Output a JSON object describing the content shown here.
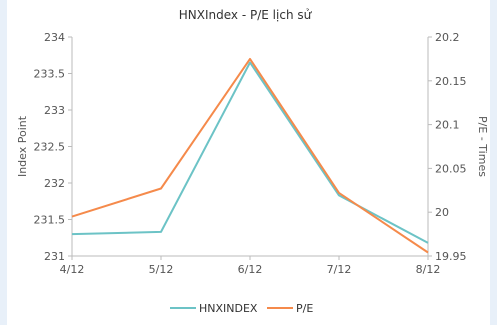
{
  "chart_data": {
    "type": "line",
    "title": "HNXIndex - P/E lịch sử",
    "categories": [
      "4/12",
      "5/12",
      "6/12",
      "7/12",
      "8/12"
    ],
    "ylabel_left": "Index Point",
    "ylabel_right": "P/E - Times",
    "ylim_left": [
      231,
      234
    ],
    "ylim_right": [
      19.95,
      20.2
    ],
    "yticks_left": [
      "231",
      "231.5",
      "232",
      "232.5",
      "233",
      "233.5",
      "234"
    ],
    "yticks_right": [
      "19.95",
      "20",
      "20.05",
      "20.1",
      "20.15",
      "20.2"
    ],
    "grid": false,
    "legend_position": "bottom",
    "series": [
      {
        "name": "HNXINDEX",
        "axis": "left",
        "color": "#6cc3c6",
        "values": [
          231.3,
          231.33,
          233.65,
          231.83,
          231.18
        ]
      },
      {
        "name": "P/E",
        "axis": "right",
        "color": "#f58a4b",
        "values": [
          19.995,
          20.027,
          20.175,
          20.022,
          19.954
        ]
      }
    ]
  }
}
